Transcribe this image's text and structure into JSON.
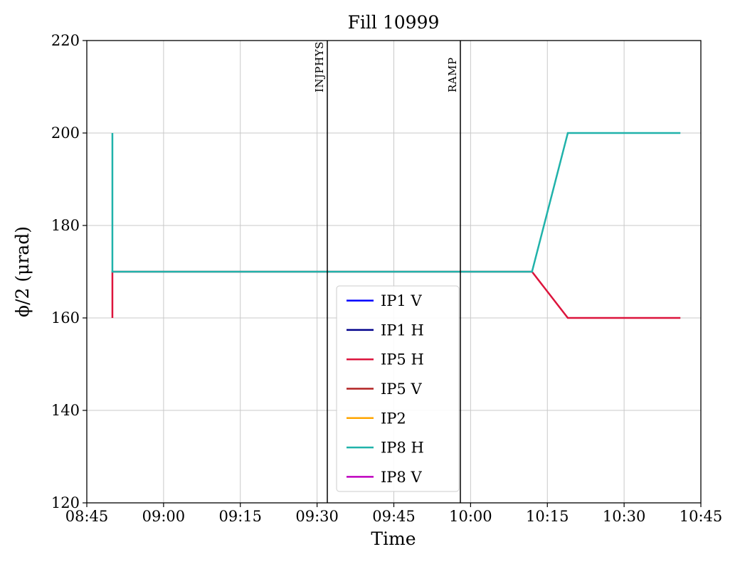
{
  "chart_data": {
    "type": "line",
    "title": "Fill 10999",
    "xlabel": "Time",
    "ylabel": "ϕ/2 (μrad)",
    "xlim": [
      "08:45",
      "10:45"
    ],
    "ylim": [
      120,
      220
    ],
    "x_ticks": [
      "08:45",
      "09:00",
      "09:15",
      "09:30",
      "09:45",
      "10:00",
      "10:15",
      "10:30",
      "10:45"
    ],
    "y_ticks": [
      120,
      140,
      160,
      180,
      200,
      220
    ],
    "grid": true,
    "grid_color": "#c9c9c9",
    "frame_color": "#000000",
    "legend_position": "inside lower-center",
    "events": [
      {
        "label": "INJPHYS",
        "time": "09:32"
      },
      {
        "label": "RAMP",
        "time": "09:58"
      }
    ],
    "series": [
      {
        "name": "IP1 V",
        "color": "#0000ff",
        "points": []
      },
      {
        "name": "IP1 H",
        "color": "#00008b",
        "points": []
      },
      {
        "name": "IP5 H",
        "color": "#dc143c",
        "points": [
          [
            "08:50",
            160
          ],
          [
            "08:50",
            170
          ],
          [
            "10:12",
            170
          ],
          [
            "10:19",
            160
          ],
          [
            "10:41",
            160
          ]
        ]
      },
      {
        "name": "IP5 V",
        "color": "#b22222",
        "points": []
      },
      {
        "name": "IP2",
        "color": "#ffa500",
        "points": []
      },
      {
        "name": "IP8 H",
        "color": "#20b2aa",
        "points": [
          [
            "08:50",
            200
          ],
          [
            "08:50",
            170
          ],
          [
            "10:12",
            170
          ],
          [
            "10:19",
            200
          ],
          [
            "10:41",
            200
          ]
        ]
      },
      {
        "name": "IP8 V",
        "color": "#bf00bf",
        "points": []
      }
    ]
  }
}
